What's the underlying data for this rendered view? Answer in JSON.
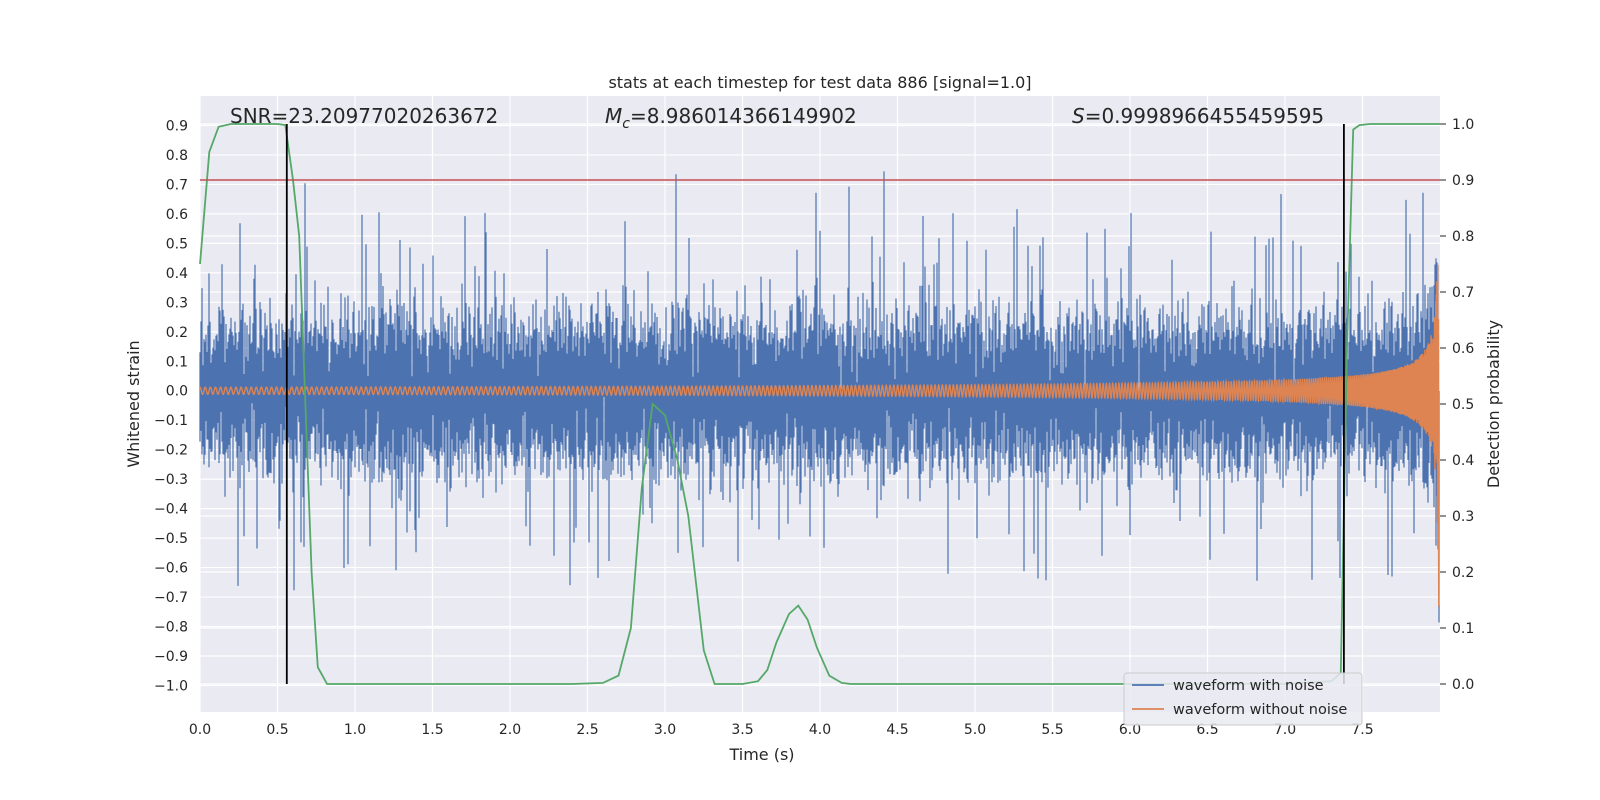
{
  "chart_data": {
    "type": "line",
    "title": "stats at each timestep for test data 886 [signal=1.0]",
    "xlabel": "Time (s)",
    "ylabel": "Whitened strain",
    "y2label": "Detection probability",
    "xlim": [
      0.0,
      8.0
    ],
    "ylim": [
      -1.09,
      1.0
    ],
    "y2lim": [
      -0.05,
      1.05
    ],
    "xticks": [
      "0.0",
      "0.5",
      "1.0",
      "1.5",
      "2.0",
      "2.5",
      "3.0",
      "3.5",
      "4.0",
      "4.5",
      "5.0",
      "5.5",
      "6.0",
      "6.5",
      "7.0",
      "7.5"
    ],
    "yticks": [
      "0.9",
      "0.8",
      "0.7",
      "0.6",
      "0.5",
      "0.4",
      "0.3",
      "0.2",
      "0.1",
      "0.0",
      "−0.1",
      "−0.2",
      "−0.3",
      "−0.4",
      "−0.5",
      "−0.6",
      "−0.7",
      "−0.8",
      "−0.9",
      "−1.0"
    ],
    "y2ticks": [
      "1.0",
      "0.9",
      "0.8",
      "0.7",
      "0.6",
      "0.5",
      "0.4",
      "0.3",
      "0.2",
      "0.1",
      "0.0"
    ],
    "annotations": {
      "snr": "SNR=23.20977020263672",
      "mc_symbol": "M",
      "mc_sub": "c",
      "mc_value": "=8.986014366149902",
      "s_symbol": "S",
      "s_value": "=0.9998966455459595"
    },
    "threshold": 0.9,
    "vlines_x": [
      0.56,
      7.38
    ],
    "series": [
      {
        "name": "waveform with noise",
        "color": "#4c72b0",
        "description_only": false
      },
      {
        "name": "waveform without noise",
        "color": "#dd8452"
      }
    ],
    "detection_probability": {
      "color": "#55a868",
      "x": [
        0.0,
        0.06,
        0.12,
        0.2,
        0.3,
        0.4,
        0.5,
        0.55,
        0.6,
        0.64,
        0.68,
        0.72,
        0.76,
        0.82,
        0.9,
        1.0,
        1.5,
        2.0,
        2.4,
        2.6,
        2.7,
        2.78,
        2.85,
        2.92,
        3.0,
        3.08,
        3.15,
        3.25,
        3.32,
        3.38,
        3.5,
        3.6,
        3.66,
        3.72,
        3.8,
        3.86,
        3.92,
        3.98,
        4.06,
        4.14,
        4.2,
        4.3,
        4.5,
        5.0,
        6.0,
        7.0,
        7.3,
        7.36,
        7.4,
        7.44,
        7.48,
        7.55,
        7.7,
        8.0
      ],
      "y": [
        0.75,
        0.95,
        0.995,
        1.0,
        1.0,
        1.0,
        1.0,
        0.998,
        0.9,
        0.8,
        0.5,
        0.2,
        0.03,
        0.0,
        0.0,
        0.0,
        0.0,
        0.0,
        0.0,
        0.002,
        0.015,
        0.1,
        0.35,
        0.5,
        0.48,
        0.4,
        0.3,
        0.06,
        0.0,
        0.0,
        0.0,
        0.005,
        0.025,
        0.075,
        0.125,
        0.14,
        0.115,
        0.065,
        0.015,
        0.002,
        0.0,
        0.0,
        0.0,
        0.0,
        0.0,
        0.0,
        0.005,
        0.02,
        0.6,
        0.99,
        0.998,
        1.0,
        1.0,
        1.0
      ]
    },
    "legend": {
      "placement": "lower-right",
      "entries": [
        "waveform with noise",
        "waveform without noise"
      ]
    }
  }
}
